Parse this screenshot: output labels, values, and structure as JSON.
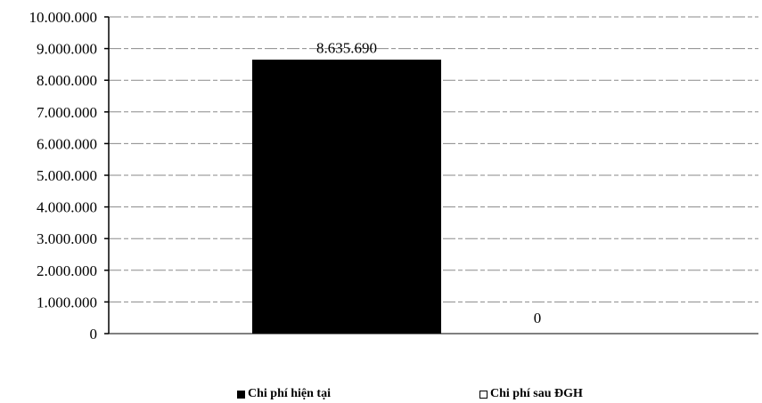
{
  "chart_data": {
    "type": "bar",
    "categories": [
      "Chi phí hiện tại",
      "Chi phí sau ĐGH"
    ],
    "series": [
      {
        "name": "Chi phí hiện tại",
        "color": "#000000",
        "fill": "solid"
      },
      {
        "name": "Chi phí sau ĐGH",
        "color": "#000000",
        "fill": "hollow"
      }
    ],
    "values": [
      8635690,
      0
    ],
    "data_labels": [
      "8.635.690",
      "0"
    ],
    "ylim": [
      0,
      10000000
    ],
    "yticks": [
      0,
      1000000,
      2000000,
      3000000,
      4000000,
      5000000,
      6000000,
      7000000,
      8000000,
      9000000,
      10000000
    ],
    "ytick_labels": [
      "0",
      "1.000.000",
      "2.000.000",
      "3.000.000",
      "4.000.000",
      "5.000.000",
      "6.000.000",
      "7.000.000",
      "8.000.000",
      "9.000.000",
      "10.000.000"
    ],
    "grid": true,
    "grid_style": "dashed",
    "legend_position": "bottom",
    "title": "",
    "xlabel": "",
    "ylabel": ""
  },
  "legend": {
    "item1": "Chi phí hiện tại",
    "item2": "Chi phí sau ĐGH"
  }
}
